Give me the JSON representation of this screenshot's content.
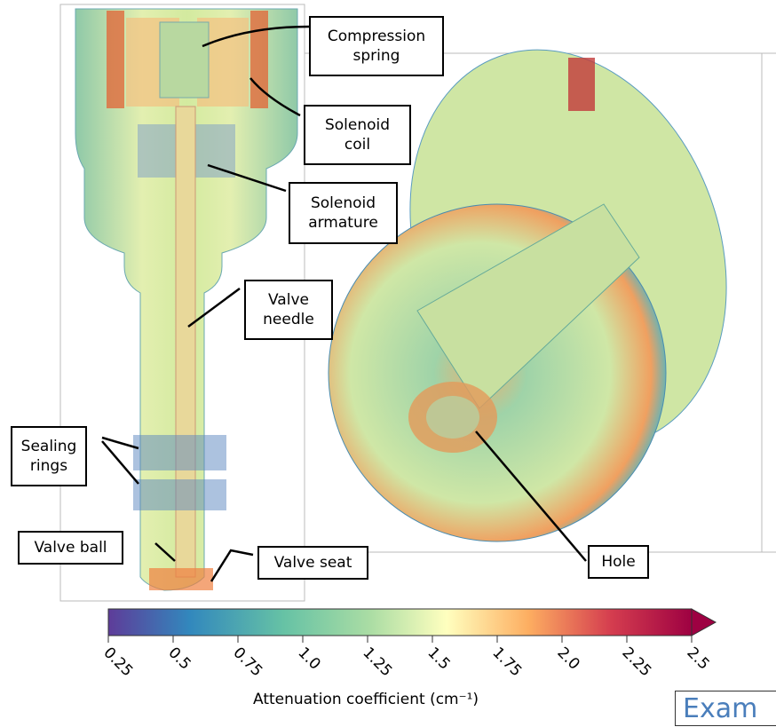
{
  "labels": [
    {
      "text": "Compression\nspring"
    },
    {
      "text": "Solenoid\ncoil"
    },
    {
      "text": "Solenoid\narmature"
    },
    {
      "text": "Valve\nneedle"
    },
    {
      "text": "Sealing\nrings"
    },
    {
      "text": "Valve ball"
    },
    {
      "text": "Valve seat"
    },
    {
      "text": "Hole"
    }
  ],
  "colorbar": {
    "label": "Attenuation coefficient (cm⁻¹)",
    "lim": [
      0.25,
      2.5
    ],
    "ticks": [
      0.25,
      0.5,
      0.75,
      {
        "value": 1,
        "label": "1.0"
      },
      1.25,
      1.5,
      1.75,
      {
        "value": 2,
        "label": "2.0"
      },
      2.25,
      2.5
    ]
  },
  "corner_text": "Exam"
}
